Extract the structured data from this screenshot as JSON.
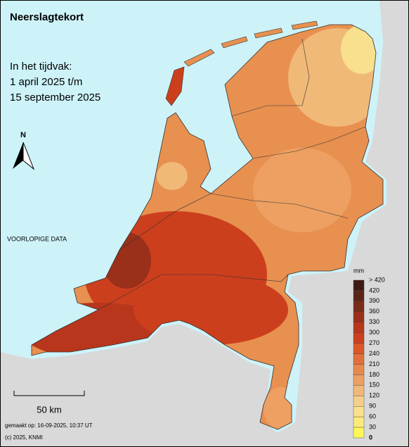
{
  "header": {
    "title": "Neerslagtekort",
    "period_label": "In het tijdvak:",
    "period_start": "1 april 2025 t/m",
    "period_end": "15 september 2025"
  },
  "north_label": "N",
  "status": "VOORLOPIGE DATA",
  "scale_label": "50 km",
  "footer": {
    "made": "gemaakt op: 16-09-2025, 10:37 UT",
    "copyright": "(c) 2025, KNMI"
  },
  "legend": {
    "unit": "mm",
    "labels": [
      "> 420",
      420,
      390,
      360,
      330,
      300,
      270,
      240,
      210,
      180,
      150,
      120,
      90,
      60,
      30,
      0
    ],
    "colors": [
      "#3d1a14",
      "#5a2518",
      "#7a2c1a",
      "#9a2f1a",
      "#b8361b",
      "#cc3f1d",
      "#dc5626",
      "#e2703a",
      "#e8894c",
      "#eda062",
      "#f1b978",
      "#f5cf8a",
      "#f8e08e",
      "#fbe97a",
      "#fef65a"
    ]
  }
}
